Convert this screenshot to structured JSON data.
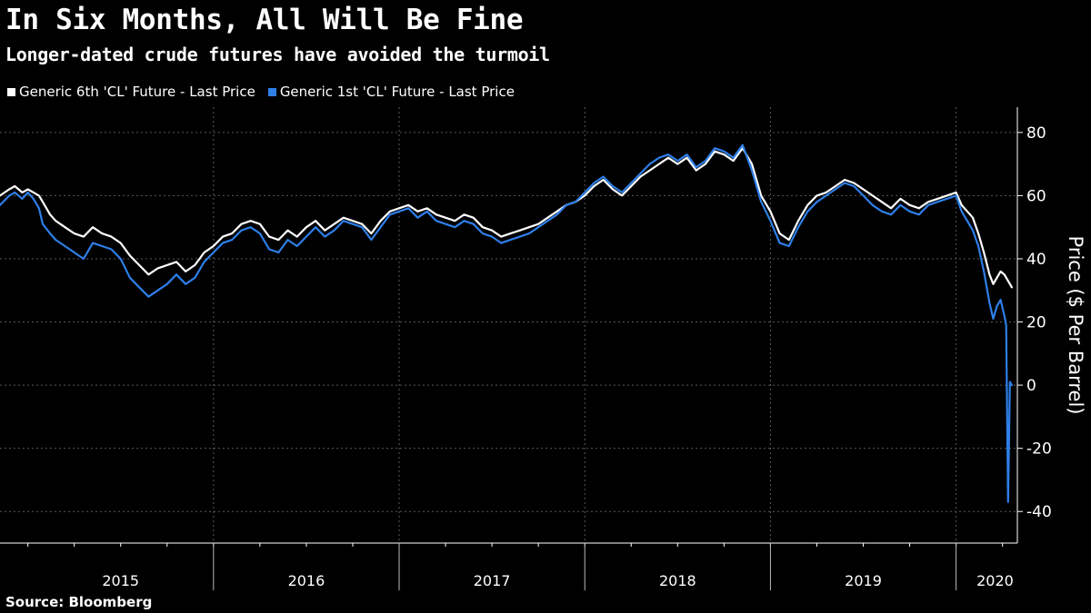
{
  "chart_data": {
    "type": "line",
    "title": "In Six Months, All Will Be Fine",
    "subtitle": "Longer-dated crude futures have avoided the turmoil",
    "ylabel": "Price ($ Per Barrel)",
    "xlabel": "",
    "ylim": [
      -50,
      88
    ],
    "xlim": [
      2014.85,
      2020.33
    ],
    "yticks": [
      80,
      60,
      40,
      20,
      0,
      -20,
      -40
    ],
    "xticks": [
      {
        "label": "2015",
        "center": 2015.5
      },
      {
        "label": "2016",
        "center": 2016.5
      },
      {
        "label": "2017",
        "center": 2017.5
      },
      {
        "label": "2018",
        "center": 2018.5
      },
      {
        "label": "2019",
        "center": 2019.5
      },
      {
        "label": "2020",
        "center": 2020.21
      }
    ],
    "year_boundaries": [
      2016,
      2017,
      2018,
      2019,
      2020
    ],
    "grid": true,
    "legend_position": "top-left",
    "source": "Source: Bloomberg",
    "series": [
      {
        "name": "Generic 6th 'CL' Future - Last Price",
        "color": "#ffffff",
        "x": [
          2014.85,
          2014.9,
          2014.93,
          2014.97,
          2015.0,
          2015.03,
          2015.06,
          2015.08,
          2015.12,
          2015.15,
          2015.2,
          2015.25,
          2015.3,
          2015.35,
          2015.4,
          2015.45,
          2015.5,
          2015.55,
          2015.6,
          2015.65,
          2015.7,
          2015.75,
          2015.8,
          2015.85,
          2015.9,
          2015.95,
          2016.0,
          2016.05,
          2016.1,
          2016.15,
          2016.2,
          2016.25,
          2016.3,
          2016.35,
          2016.4,
          2016.45,
          2016.5,
          2016.55,
          2016.6,
          2016.65,
          2016.7,
          2016.75,
          2016.8,
          2016.85,
          2016.9,
          2016.95,
          2017.0,
          2017.05,
          2017.1,
          2017.15,
          2017.2,
          2017.25,
          2017.3,
          2017.35,
          2017.4,
          2017.45,
          2017.5,
          2017.55,
          2017.6,
          2017.65,
          2017.7,
          2017.75,
          2017.8,
          2017.85,
          2017.9,
          2017.95,
          2018.0,
          2018.05,
          2018.1,
          2018.15,
          2018.2,
          2018.25,
          2018.3,
          2018.35,
          2018.4,
          2018.45,
          2018.5,
          2018.55,
          2018.6,
          2018.65,
          2018.7,
          2018.75,
          2018.8,
          2018.85,
          2018.9,
          2018.95,
          2019.0,
          2019.05,
          2019.1,
          2019.15,
          2019.2,
          2019.25,
          2019.3,
          2019.35,
          2019.4,
          2019.45,
          2019.5,
          2019.55,
          2019.6,
          2019.65,
          2019.7,
          2019.75,
          2019.8,
          2019.85,
          2019.9,
          2019.95,
          2020.0,
          2020.03,
          2020.06,
          2020.09,
          2020.12,
          2020.15,
          2020.18,
          2020.2,
          2020.22,
          2020.24,
          2020.26,
          2020.28,
          2020.3
        ],
        "y": [
          60,
          62,
          63,
          61,
          62,
          61,
          60,
          58,
          54,
          52,
          50,
          48,
          47,
          50,
          48,
          47,
          45,
          41,
          38,
          35,
          37,
          38,
          39,
          36,
          38,
          42,
          44,
          47,
          48,
          51,
          52,
          51,
          47,
          46,
          49,
          47,
          50,
          52,
          49,
          51,
          53,
          52,
          51,
          48,
          52,
          55,
          56,
          57,
          55,
          56,
          54,
          53,
          52,
          54,
          53,
          50,
          49,
          47,
          48,
          49,
          50,
          51,
          53,
          55,
          57,
          58,
          60,
          63,
          65,
          62,
          60,
          63,
          66,
          68,
          70,
          72,
          70,
          72,
          68,
          70,
          74,
          73,
          71,
          75,
          70,
          60,
          55,
          48,
          46,
          52,
          57,
          60,
          61,
          63,
          65,
          64,
          62,
          60,
          58,
          56,
          59,
          57,
          56,
          58,
          59,
          60,
          61,
          57,
          55,
          53,
          48,
          42,
          35,
          32,
          34,
          36,
          35,
          33,
          31
        ]
      },
      {
        "name": "Generic 1st 'CL' Future - Last Price",
        "color": "#2e7fe8",
        "x": [
          2014.85,
          2014.9,
          2014.93,
          2014.97,
          2015.0,
          2015.03,
          2015.06,
          2015.08,
          2015.12,
          2015.15,
          2015.2,
          2015.25,
          2015.3,
          2015.35,
          2015.4,
          2015.45,
          2015.5,
          2015.55,
          2015.6,
          2015.65,
          2015.7,
          2015.75,
          2015.8,
          2015.85,
          2015.9,
          2015.95,
          2016.0,
          2016.05,
          2016.1,
          2016.15,
          2016.2,
          2016.25,
          2016.3,
          2016.35,
          2016.4,
          2016.45,
          2016.5,
          2016.55,
          2016.6,
          2016.65,
          2016.7,
          2016.75,
          2016.8,
          2016.85,
          2016.9,
          2016.95,
          2017.0,
          2017.05,
          2017.1,
          2017.15,
          2017.2,
          2017.25,
          2017.3,
          2017.35,
          2017.4,
          2017.45,
          2017.5,
          2017.55,
          2017.6,
          2017.65,
          2017.7,
          2017.75,
          2017.8,
          2017.85,
          2017.9,
          2017.95,
          2018.0,
          2018.05,
          2018.1,
          2018.15,
          2018.2,
          2018.25,
          2018.3,
          2018.35,
          2018.4,
          2018.45,
          2018.5,
          2018.55,
          2018.6,
          2018.65,
          2018.7,
          2018.75,
          2018.8,
          2018.85,
          2018.9,
          2018.95,
          2019.0,
          2019.05,
          2019.1,
          2019.15,
          2019.2,
          2019.25,
          2019.3,
          2019.35,
          2019.4,
          2019.45,
          2019.5,
          2019.55,
          2019.6,
          2019.65,
          2019.7,
          2019.75,
          2019.8,
          2019.85,
          2019.9,
          2019.95,
          2020.0,
          2020.03,
          2020.06,
          2020.09,
          2020.12,
          2020.15,
          2020.18,
          2020.2,
          2020.22,
          2020.24,
          2020.26,
          2020.27,
          2020.28,
          2020.29,
          2020.3
        ],
        "y": [
          57,
          60,
          61,
          59,
          61,
          59,
          56,
          51,
          48,
          46,
          44,
          42,
          40,
          45,
          44,
          43,
          40,
          34,
          31,
          28,
          30,
          32,
          35,
          32,
          34,
          39,
          42,
          45,
          46,
          49,
          50,
          48,
          43,
          42,
          46,
          44,
          47,
          50,
          47,
          49,
          52,
          51,
          50,
          46,
          50,
          54,
          55,
          56,
          53,
          55,
          52,
          51,
          50,
          52,
          51,
          48,
          47,
          45,
          46,
          47,
          48,
          50,
          52,
          54,
          57,
          58,
          61,
          64,
          66,
          63,
          61,
          64,
          67,
          70,
          72,
          73,
          71,
          73,
          69,
          71,
          75,
          74,
          72,
          76,
          68,
          58,
          52,
          45,
          44,
          50,
          55,
          58,
          60,
          62,
          64,
          63,
          60,
          57,
          55,
          54,
          57,
          55,
          54,
          57,
          58,
          59,
          60,
          55,
          52,
          49,
          44,
          36,
          26,
          21,
          25,
          27,
          22,
          19,
          -37,
          1,
          0
        ]
      }
    ]
  }
}
